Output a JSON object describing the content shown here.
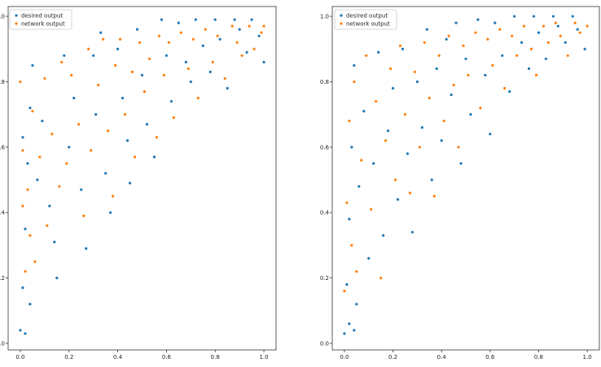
{
  "colors": {
    "desired": "#1f77b4",
    "network": "#ff7f0e"
  },
  "chart_data": [
    {
      "type": "scatter",
      "title": "",
      "xlabel": "",
      "ylabel": "",
      "xlim": [
        -0.05,
        1.05
      ],
      "ylim": [
        -0.02,
        1.03
      ],
      "xticks": [
        "0.0",
        "0.2",
        "0.4",
        "0.6",
        "0.8",
        "1.0"
      ],
      "yticks": [
        "0.0",
        "0.2",
        "0.4",
        "0.6",
        "0.8",
        "1.0"
      ],
      "legend_position": "top-left",
      "grid": false,
      "series": [
        {
          "name": "desired output",
          "points": [
            [
              0.0,
              0.04
            ],
            [
              0.02,
              0.03
            ],
            [
              0.04,
              0.12
            ],
            [
              0.01,
              0.17
            ],
            [
              0.02,
              0.35
            ],
            [
              0.03,
              0.55
            ],
            [
              0.01,
              0.63
            ],
            [
              0.04,
              0.72
            ],
            [
              0.05,
              0.85
            ],
            [
              0.07,
              0.5
            ],
            [
              0.09,
              0.68
            ],
            [
              0.12,
              0.42
            ],
            [
              0.14,
              0.31
            ],
            [
              0.15,
              0.2
            ],
            [
              0.18,
              0.88
            ],
            [
              0.2,
              0.6
            ],
            [
              0.22,
              0.75
            ],
            [
              0.25,
              0.47
            ],
            [
              0.27,
              0.29
            ],
            [
              0.3,
              0.88
            ],
            [
              0.31,
              0.7
            ],
            [
              0.33,
              0.95
            ],
            [
              0.35,
              0.52
            ],
            [
              0.37,
              0.4
            ],
            [
              0.4,
              0.9
            ],
            [
              0.42,
              0.75
            ],
            [
              0.44,
              0.62
            ],
            [
              0.45,
              0.49
            ],
            [
              0.48,
              0.96
            ],
            [
              0.5,
              0.82
            ],
            [
              0.52,
              0.67
            ],
            [
              0.55,
              0.57
            ],
            [
              0.58,
              0.99
            ],
            [
              0.6,
              0.88
            ],
            [
              0.62,
              0.74
            ],
            [
              0.65,
              0.98
            ],
            [
              0.68,
              0.86
            ],
            [
              0.7,
              0.8
            ],
            [
              0.72,
              0.99
            ],
            [
              0.75,
              0.91
            ],
            [
              0.78,
              0.83
            ],
            [
              0.8,
              0.99
            ],
            [
              0.82,
              0.93
            ],
            [
              0.85,
              0.78
            ],
            [
              0.88,
              0.99
            ],
            [
              0.9,
              0.96
            ],
            [
              0.93,
              0.89
            ],
            [
              0.95,
              0.99
            ],
            [
              0.98,
              0.94
            ],
            [
              1.0,
              0.86
            ]
          ]
        },
        {
          "name": "network output",
          "points": [
            [
              0.0,
              0.8
            ],
            [
              0.01,
              0.59
            ],
            [
              0.01,
              0.42
            ],
            [
              0.02,
              0.22
            ],
            [
              0.03,
              0.47
            ],
            [
              0.04,
              0.33
            ],
            [
              0.05,
              0.71
            ],
            [
              0.06,
              0.25
            ],
            [
              0.08,
              0.57
            ],
            [
              0.1,
              0.81
            ],
            [
              0.11,
              0.36
            ],
            [
              0.13,
              0.64
            ],
            [
              0.16,
              0.48
            ],
            [
              0.17,
              0.86
            ],
            [
              0.19,
              0.55
            ],
            [
              0.21,
              0.82
            ],
            [
              0.24,
              0.67
            ],
            [
              0.26,
              0.39
            ],
            [
              0.28,
              0.9
            ],
            [
              0.29,
              0.59
            ],
            [
              0.32,
              0.79
            ],
            [
              0.34,
              0.93
            ],
            [
              0.36,
              0.65
            ],
            [
              0.38,
              0.45
            ],
            [
              0.39,
              0.85
            ],
            [
              0.41,
              0.93
            ],
            [
              0.43,
              0.7
            ],
            [
              0.46,
              0.83
            ],
            [
              0.47,
              0.57
            ],
            [
              0.49,
              0.92
            ],
            [
              0.51,
              0.77
            ],
            [
              0.53,
              0.87
            ],
            [
              0.56,
              0.63
            ],
            [
              0.57,
              0.94
            ],
            [
              0.59,
              0.82
            ],
            [
              0.61,
              0.92
            ],
            [
              0.63,
              0.69
            ],
            [
              0.66,
              0.95
            ],
            [
              0.69,
              0.84
            ],
            [
              0.71,
              0.93
            ],
            [
              0.73,
              0.75
            ],
            [
              0.76,
              0.96
            ],
            [
              0.79,
              0.86
            ],
            [
              0.81,
              0.94
            ],
            [
              0.84,
              0.81
            ],
            [
              0.87,
              0.97
            ],
            [
              0.89,
              0.92
            ],
            [
              0.91,
              0.88
            ],
            [
              0.94,
              0.97
            ],
            [
              0.96,
              0.9
            ],
            [
              0.99,
              0.95
            ],
            [
              1.0,
              0.97
            ]
          ]
        }
      ]
    },
    {
      "type": "scatter",
      "title": "",
      "xlabel": "",
      "ylabel": "",
      "xlim": [
        -0.05,
        1.05
      ],
      "ylim": [
        -0.02,
        1.03
      ],
      "xticks": [
        "0.0",
        "0.2",
        "0.4",
        "0.6",
        "0.8",
        "1.0"
      ],
      "yticks": [
        "0.0",
        "0.2",
        "0.4",
        "0.6",
        "0.8",
        "1.0"
      ],
      "legend_position": "top-left",
      "grid": false,
      "series": [
        {
          "name": "desired output",
          "points": [
            [
              0.0,
              0.03
            ],
            [
              0.02,
              0.06
            ],
            [
              0.04,
              0.04
            ],
            [
              0.05,
              0.12
            ],
            [
              0.01,
              0.18
            ],
            [
              0.02,
              0.38
            ],
            [
              0.03,
              0.6
            ],
            [
              0.04,
              0.85
            ],
            [
              0.06,
              0.48
            ],
            [
              0.08,
              0.71
            ],
            [
              0.1,
              0.26
            ],
            [
              0.12,
              0.55
            ],
            [
              0.14,
              0.89
            ],
            [
              0.16,
              0.33
            ],
            [
              0.18,
              0.65
            ],
            [
              0.2,
              0.78
            ],
            [
              0.22,
              0.44
            ],
            [
              0.24,
              0.9
            ],
            [
              0.26,
              0.58
            ],
            [
              0.28,
              0.34
            ],
            [
              0.3,
              0.8
            ],
            [
              0.32,
              0.66
            ],
            [
              0.34,
              0.96
            ],
            [
              0.36,
              0.5
            ],
            [
              0.38,
              0.84
            ],
            [
              0.4,
              0.62
            ],
            [
              0.42,
              0.93
            ],
            [
              0.44,
              0.76
            ],
            [
              0.46,
              0.98
            ],
            [
              0.48,
              0.55
            ],
            [
              0.5,
              0.87
            ],
            [
              0.52,
              0.7
            ],
            [
              0.55,
              0.99
            ],
            [
              0.58,
              0.82
            ],
            [
              0.6,
              0.64
            ],
            [
              0.62,
              0.98
            ],
            [
              0.65,
              0.88
            ],
            [
              0.68,
              0.77
            ],
            [
              0.7,
              1.0
            ],
            [
              0.73,
              0.92
            ],
            [
              0.76,
              0.84
            ],
            [
              0.78,
              1.0
            ],
            [
              0.8,
              0.95
            ],
            [
              0.83,
              0.87
            ],
            [
              0.86,
              1.0
            ],
            [
              0.88,
              0.97
            ],
            [
              0.91,
              0.92
            ],
            [
              0.94,
              1.0
            ],
            [
              0.96,
              0.96
            ],
            [
              0.99,
              0.9
            ]
          ]
        },
        {
          "name": "network output",
          "points": [
            [
              0.0,
              0.16
            ],
            [
              0.01,
              0.43
            ],
            [
              0.02,
              0.68
            ],
            [
              0.03,
              0.3
            ],
            [
              0.04,
              0.8
            ],
            [
              0.05,
              0.22
            ],
            [
              0.07,
              0.56
            ],
            [
              0.09,
              0.88
            ],
            [
              0.11,
              0.41
            ],
            [
              0.13,
              0.74
            ],
            [
              0.15,
              0.2
            ],
            [
              0.17,
              0.62
            ],
            [
              0.19,
              0.84
            ],
            [
              0.21,
              0.5
            ],
            [
              0.23,
              0.91
            ],
            [
              0.25,
              0.7
            ],
            [
              0.27,
              0.46
            ],
            [
              0.29,
              0.83
            ],
            [
              0.31,
              0.6
            ],
            [
              0.33,
              0.92
            ],
            [
              0.35,
              0.75
            ],
            [
              0.37,
              0.45
            ],
            [
              0.39,
              0.88
            ],
            [
              0.41,
              0.68
            ],
            [
              0.43,
              0.94
            ],
            [
              0.45,
              0.79
            ],
            [
              0.47,
              0.6
            ],
            [
              0.49,
              0.91
            ],
            [
              0.51,
              0.82
            ],
            [
              0.54,
              0.95
            ],
            [
              0.56,
              0.72
            ],
            [
              0.59,
              0.93
            ],
            [
              0.61,
              0.85
            ],
            [
              0.64,
              0.96
            ],
            [
              0.66,
              0.78
            ],
            [
              0.69,
              0.94
            ],
            [
              0.71,
              0.88
            ],
            [
              0.74,
              0.97
            ],
            [
              0.77,
              0.9
            ],
            [
              0.79,
              0.82
            ],
            [
              0.82,
              0.97
            ],
            [
              0.84,
              0.92
            ],
            [
              0.87,
              0.98
            ],
            [
              0.89,
              0.94
            ],
            [
              0.92,
              0.88
            ],
            [
              0.95,
              0.98
            ],
            [
              0.97,
              0.95
            ],
            [
              1.0,
              0.97
            ]
          ]
        }
      ]
    }
  ]
}
